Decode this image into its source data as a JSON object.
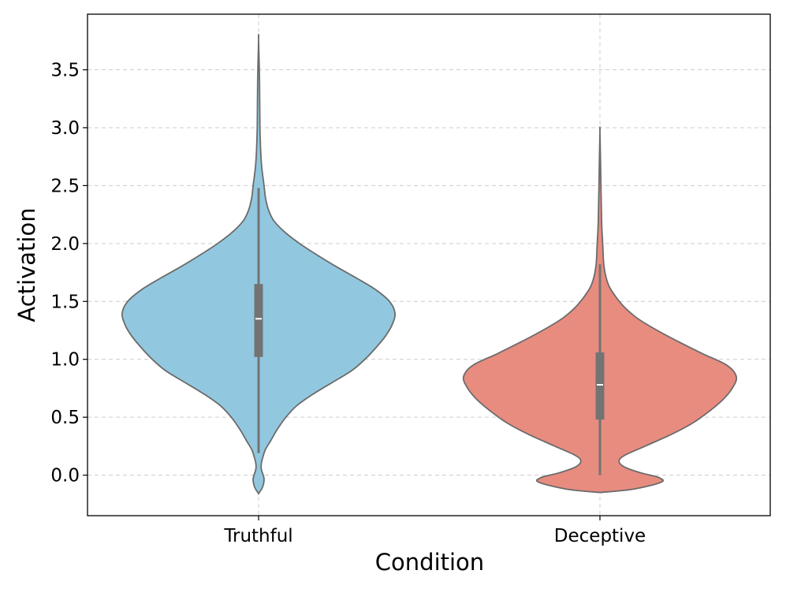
{
  "chart_data": {
    "type": "violin",
    "title": "",
    "xlabel": "Condition",
    "ylabel": "Activation",
    "categories": [
      "Truthful",
      "Deceptive"
    ],
    "ylim": [
      -0.35,
      3.98
    ],
    "yticks": [
      "0.0",
      "0.5",
      "1.0",
      "1.5",
      "2.0",
      "2.5",
      "3.0",
      "3.5"
    ],
    "grid": true,
    "colors": {
      "Truthful": "#92c8df",
      "Deceptive": "#e88c80",
      "outline": "#6b6b6b",
      "box": "#737373",
      "median": "#ffffff",
      "grid": "#cccccc"
    },
    "series": [
      {
        "category": "Truthful",
        "summary": {
          "min": 0.19,
          "q1": 1.02,
          "median": 1.35,
          "q3": 1.65,
          "max": 2.48
        },
        "density_profile": [
          [
            -0.16,
            0.0
          ],
          [
            -0.1,
            0.03
          ],
          [
            -0.03,
            0.04
          ],
          [
            0.05,
            0.02
          ],
          [
            0.1,
            0.02
          ],
          [
            0.15,
            0.03
          ],
          [
            0.22,
            0.05
          ],
          [
            0.3,
            0.09
          ],
          [
            0.4,
            0.14
          ],
          [
            0.5,
            0.2
          ],
          [
            0.6,
            0.28
          ],
          [
            0.7,
            0.4
          ],
          [
            0.8,
            0.54
          ],
          [
            0.9,
            0.68
          ],
          [
            1.0,
            0.78
          ],
          [
            1.1,
            0.86
          ],
          [
            1.2,
            0.93
          ],
          [
            1.3,
            0.98
          ],
          [
            1.4,
            1.0
          ],
          [
            1.5,
            0.96
          ],
          [
            1.6,
            0.86
          ],
          [
            1.7,
            0.72
          ],
          [
            1.8,
            0.57
          ],
          [
            1.9,
            0.43
          ],
          [
            2.0,
            0.3
          ],
          [
            2.1,
            0.19
          ],
          [
            2.2,
            0.11
          ],
          [
            2.3,
            0.07
          ],
          [
            2.4,
            0.05
          ],
          [
            2.5,
            0.04
          ],
          [
            2.7,
            0.02
          ],
          [
            3.0,
            0.01
          ],
          [
            3.4,
            0.007
          ],
          [
            3.76,
            0.0
          ]
        ]
      },
      {
        "category": "Deceptive",
        "summary": {
          "min": 0.0,
          "q1": 0.48,
          "median": 0.78,
          "q3": 1.06,
          "max": 1.82
        },
        "density_profile": [
          [
            -0.15,
            0.0
          ],
          [
            -0.12,
            0.25
          ],
          [
            -0.06,
            0.45
          ],
          [
            -0.02,
            0.43
          ],
          [
            0.02,
            0.3
          ],
          [
            0.07,
            0.18
          ],
          [
            0.12,
            0.14
          ],
          [
            0.17,
            0.18
          ],
          [
            0.25,
            0.33
          ],
          [
            0.35,
            0.52
          ],
          [
            0.45,
            0.68
          ],
          [
            0.55,
            0.8
          ],
          [
            0.65,
            0.9
          ],
          [
            0.75,
            0.97
          ],
          [
            0.85,
            1.0
          ],
          [
            0.95,
            0.93
          ],
          [
            1.05,
            0.75
          ],
          [
            1.15,
            0.58
          ],
          [
            1.25,
            0.42
          ],
          [
            1.35,
            0.28
          ],
          [
            1.45,
            0.18
          ],
          [
            1.55,
            0.11
          ],
          [
            1.65,
            0.06
          ],
          [
            1.8,
            0.03
          ],
          [
            2.0,
            0.02
          ],
          [
            2.2,
            0.012
          ],
          [
            2.6,
            0.006
          ],
          [
            2.96,
            0.0
          ]
        ]
      }
    ]
  }
}
